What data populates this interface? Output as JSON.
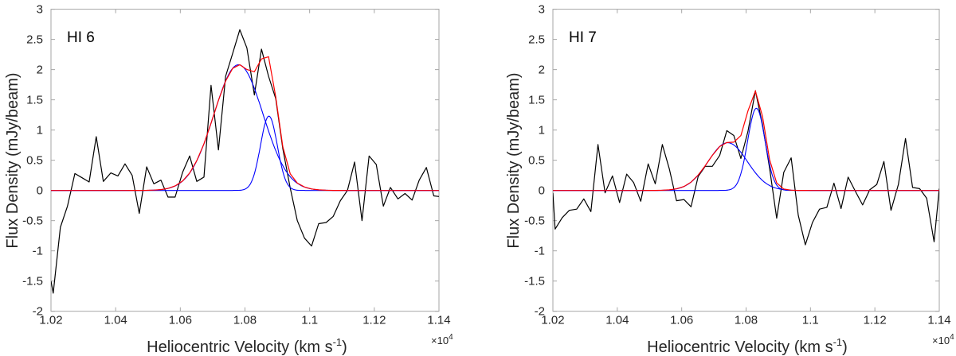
{
  "chart_data": [
    {
      "type": "line",
      "panel_label": "HI 6",
      "xlabel": "Heliocentric Velocity (km s",
      "xlabel_sup": "-1",
      "xlabel_close": ")",
      "x_multiplier": "×10",
      "x_multiplier_exp": "4",
      "ylabel": "Flux Density (mJy/beam)",
      "xlim": [
        1.02,
        1.14
      ],
      "ylim": [
        -2,
        3
      ],
      "xticks": [
        "1.02",
        "1.04",
        "1.06",
        "1.08",
        "1.1",
        "1.12",
        "1.14"
      ],
      "yticks": [
        "-2",
        "-1.5",
        "-1",
        "-0.5",
        "0",
        "0.5",
        "1",
        "1.5",
        "2",
        "2.5",
        "3"
      ],
      "grid": false,
      "colors": {
        "spectrum": "#000000",
        "components": "#0000ff",
        "total_fit": "#ff0000"
      },
      "x": [
        1.02,
        1.0207,
        1.0229,
        1.0251,
        1.0274,
        1.0296,
        1.0318,
        1.034,
        1.0362,
        1.0385,
        1.0407,
        1.0429,
        1.0451,
        1.0473,
        1.0496,
        1.0518,
        1.054,
        1.0562,
        1.0584,
        1.0607,
        1.0629,
        1.0651,
        1.0673,
        1.0695,
        1.0718,
        1.074,
        1.0762,
        1.0784,
        1.0806,
        1.0829,
        1.0851,
        1.0873,
        1.0895,
        1.0917,
        1.094,
        1.0962,
        1.0984,
        1.1006,
        1.1028,
        1.1051,
        1.1073,
        1.1095,
        1.1117,
        1.1139,
        1.1162,
        1.1184,
        1.1206,
        1.1228,
        1.125,
        1.1273,
        1.1295,
        1.1317,
        1.1339,
        1.1361,
        1.1384,
        1.14
      ],
      "spectrum": [
        -1.5,
        -1.7,
        -0.61,
        -0.26,
        0.28,
        0.21,
        0.14,
        0.89,
        0.15,
        0.29,
        0.24,
        0.44,
        0.25,
        -0.38,
        0.39,
        0.11,
        0.17,
        -0.11,
        -0.11,
        0.3,
        0.57,
        0.15,
        0.22,
        1.74,
        0.67,
        1.89,
        2.27,
        2.66,
        2.36,
        1.58,
        2.34,
        1.89,
        1.52,
        0.69,
        0.04,
        -0.5,
        -0.79,
        -0.92,
        -0.55,
        -0.53,
        -0.43,
        -0.17,
        0.0,
        0.47,
        -0.5,
        0.57,
        0.43,
        -0.26,
        0.05,
        -0.14,
        -0.05,
        -0.16,
        0.17,
        0.38,
        -0.09,
        -0.1
      ],
      "components": [
        {
          "amplitude": 2.08,
          "center": 1.078,
          "sigma": 0.0076
        },
        {
          "amplitude": 1.23,
          "center": 1.0874,
          "sigma": 0.0026
        }
      ]
    },
    {
      "type": "line",
      "panel_label": "HI 7",
      "xlabel": "Heliocentric Velocity (km s",
      "xlabel_sup": "-1",
      "xlabel_close": ")",
      "x_multiplier": "×10",
      "x_multiplier_exp": "4",
      "ylabel": "Flux Density (mJy/beam)",
      "xlim": [
        1.02,
        1.14
      ],
      "ylim": [
        -2,
        3
      ],
      "xticks": [
        "1.02",
        "1.04",
        "1.06",
        "1.08",
        "1.1",
        "1.12",
        "1.14"
      ],
      "yticks": [
        "-2",
        "-1.5",
        "-1",
        "-0.5",
        "0",
        "0.5",
        "1",
        "1.5",
        "2",
        "2.5",
        "3"
      ],
      "grid": false,
      "colors": {
        "spectrum": "#000000",
        "components": "#0000ff",
        "total_fit": "#ff0000"
      },
      "x": [
        1.02,
        1.0207,
        1.0229,
        1.0251,
        1.0274,
        1.0296,
        1.0318,
        1.034,
        1.0362,
        1.0385,
        1.0407,
        1.0429,
        1.0451,
        1.0473,
        1.0496,
        1.0518,
        1.054,
        1.0562,
        1.0584,
        1.0607,
        1.0629,
        1.0651,
        1.0673,
        1.0695,
        1.0718,
        1.074,
        1.0762,
        1.0784,
        1.0806,
        1.0829,
        1.0851,
        1.0873,
        1.0895,
        1.0917,
        1.094,
        1.0962,
        1.0984,
        1.1006,
        1.1028,
        1.1051,
        1.1073,
        1.1095,
        1.1117,
        1.1139,
        1.1162,
        1.1184,
        1.1206,
        1.1228,
        1.125,
        1.1273,
        1.1295,
        1.1317,
        1.1339,
        1.1361,
        1.1384,
        1.14
      ],
      "spectrum": [
        -0.04,
        -0.64,
        -0.45,
        -0.33,
        -0.31,
        -0.14,
        -0.35,
        0.76,
        -0.04,
        0.24,
        -0.2,
        0.27,
        0.13,
        -0.18,
        0.44,
        0.11,
        0.76,
        0.35,
        -0.17,
        -0.15,
        -0.27,
        0.23,
        0.4,
        0.4,
        0.58,
        0.99,
        0.91,
        0.53,
        0.98,
        1.65,
        1.09,
        0.37,
        -0.46,
        0.3,
        0.54,
        -0.41,
        -0.9,
        -0.53,
        -0.31,
        -0.28,
        0.12,
        -0.3,
        0.22,
        -0.01,
        -0.24,
        0.01,
        0.1,
        0.48,
        -0.33,
        0.1,
        0.86,
        0.05,
        0.03,
        -0.13,
        -0.85,
        0.03
      ],
      "components": [
        {
          "amplitude": 0.79,
          "center": 1.0743,
          "sigma": 0.0061
        },
        {
          "amplitude": 1.36,
          "center": 1.0832,
          "sigma": 0.0027
        }
      ]
    }
  ]
}
